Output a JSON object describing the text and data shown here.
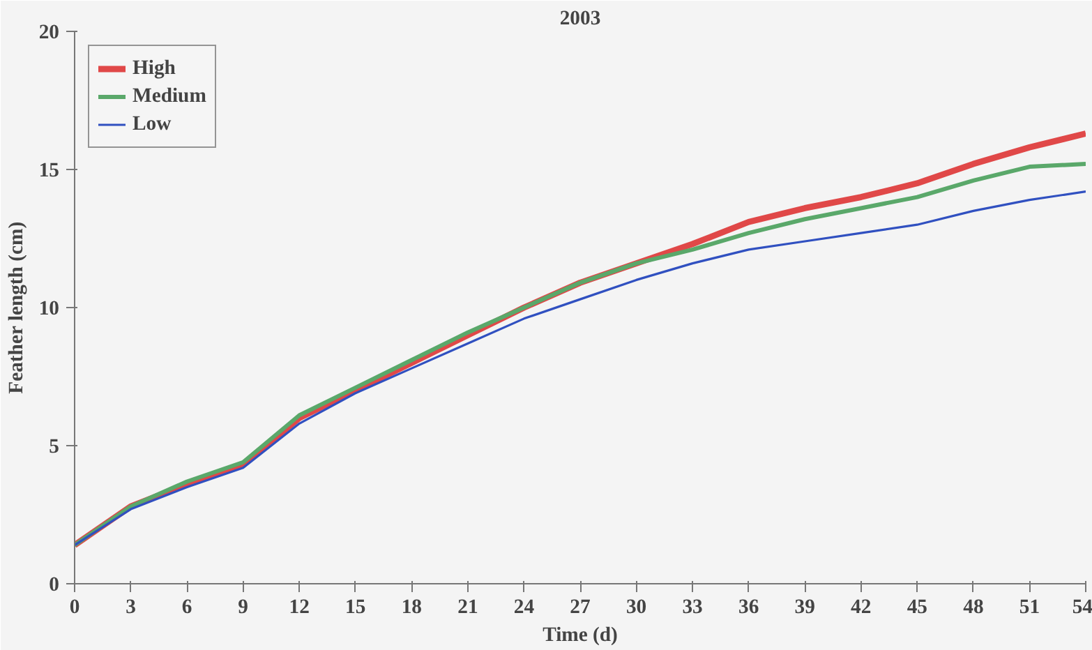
{
  "chart_data": {
    "type": "line",
    "title": "2003",
    "xlabel": "Time (d)",
    "ylabel": "Feather length (cm)",
    "x": [
      0,
      3,
      6,
      9,
      12,
      15,
      18,
      21,
      24,
      27,
      30,
      33,
      36,
      39,
      42,
      45,
      48,
      51,
      54
    ],
    "xlim": [
      0,
      54
    ],
    "xticks": [
      0,
      3,
      6,
      9,
      12,
      15,
      18,
      21,
      24,
      27,
      30,
      33,
      36,
      39,
      42,
      45,
      48,
      51,
      54
    ],
    "ylim": [
      0,
      20
    ],
    "yticks": [
      0,
      5,
      10,
      15,
      20
    ],
    "grid": false,
    "legend": "top left",
    "marker": "none",
    "line_style": "solid",
    "series": [
      {
        "name": "High",
        "color": "#e04848",
        "values": [
          1.4,
          2.8,
          3.6,
          4.3,
          6.0,
          7.0,
          8.0,
          9.0,
          10.0,
          10.9,
          11.6,
          12.3,
          13.1,
          13.6,
          14.0,
          14.5,
          15.2,
          15.8,
          16.3
        ]
      },
      {
        "name": "Medium",
        "color": "#5aa86a",
        "values": [
          1.4,
          2.8,
          3.7,
          4.4,
          6.1,
          7.1,
          8.1,
          9.1,
          10.0,
          10.9,
          11.6,
          12.1,
          12.7,
          13.2,
          13.6,
          14.0,
          14.6,
          15.1,
          15.2
        ]
      },
      {
        "name": "Low",
        "color": "#3050c0",
        "values": [
          1.4,
          2.7,
          3.5,
          4.2,
          5.8,
          6.9,
          7.8,
          8.7,
          9.6,
          10.3,
          11.0,
          11.6,
          12.1,
          12.4,
          12.7,
          13.0,
          13.5,
          13.9,
          14.2
        ]
      }
    ]
  }
}
